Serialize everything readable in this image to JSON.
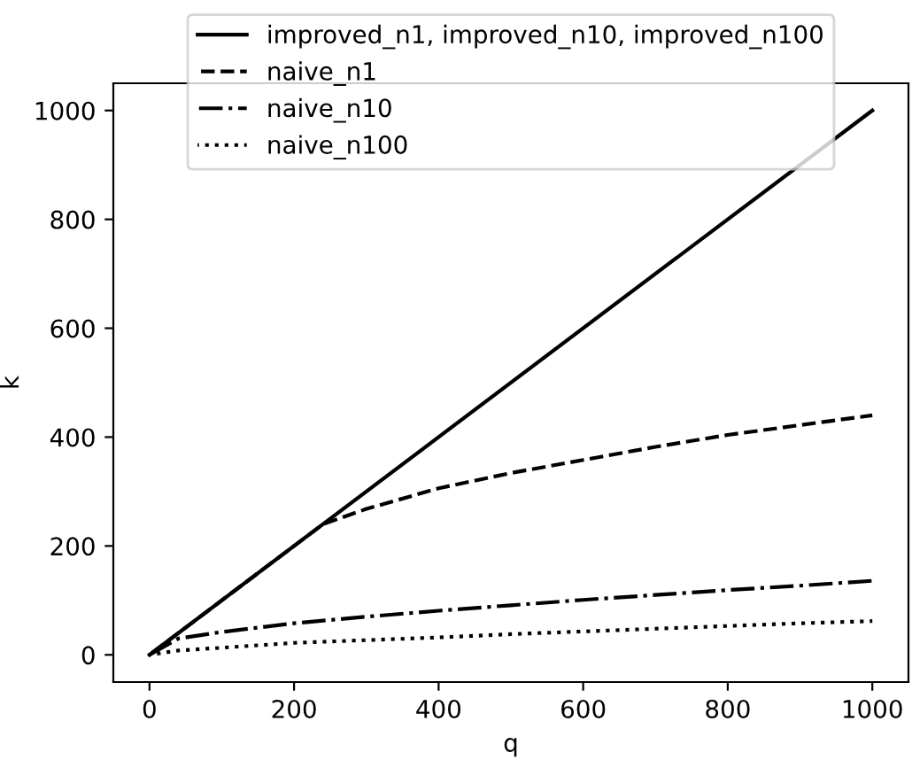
{
  "chart_data": {
    "type": "line",
    "xlabel": "q",
    "ylabel": "k",
    "xlim": [
      -50,
      1050
    ],
    "ylim": [
      -50,
      1050
    ],
    "xticks": [
      0,
      200,
      400,
      600,
      800,
      1000
    ],
    "yticks": [
      0,
      200,
      400,
      600,
      800,
      1000
    ],
    "grid": false,
    "legend": "top",
    "marker": "none",
    "series": [
      {
        "name": "improved_n1, improved_n10, improved_n100",
        "color": "#000000",
        "line_style": "solid",
        "x": [
          0,
          1000
        ],
        "values": [
          0,
          1000
        ]
      },
      {
        "name": "naive_n1",
        "color": "#000000",
        "line_style": "dashed",
        "x": [
          0,
          240,
          300,
          400,
          500,
          600,
          700,
          800,
          900,
          1000
        ],
        "values": [
          0,
          240,
          268,
          306,
          334,
          358,
          382,
          404,
          422,
          440
        ]
      },
      {
        "name": "naive_n10",
        "color": "#000000",
        "line_style": "dashdot",
        "x": [
          0,
          40,
          100,
          200,
          300,
          400,
          500,
          600,
          700,
          800,
          900,
          1000
        ],
        "values": [
          0,
          30,
          42,
          58,
          70,
          81,
          91,
          101,
          110,
          119,
          127,
          136
        ]
      },
      {
        "name": "naive_n100",
        "color": "#000000",
        "line_style": "dotted",
        "x": [
          0,
          40,
          100,
          200,
          300,
          400,
          500,
          600,
          700,
          800,
          900,
          1000
        ],
        "values": [
          0,
          8,
          13,
          22,
          27,
          32,
          38,
          43,
          48,
          53,
          58,
          62
        ]
      }
    ]
  }
}
